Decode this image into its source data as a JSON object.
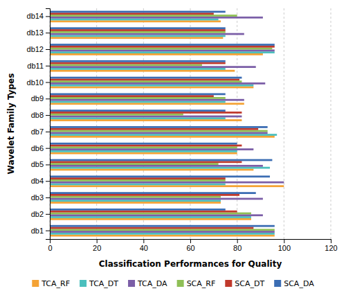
{
  "chart_data": {
    "type": "bar",
    "orientation": "horizontal",
    "xlabel": "Classification Performances for Quality",
    "ylabel": "Wavelet Family Types",
    "categories": [
      "db1",
      "db2",
      "db3",
      "db4",
      "db5",
      "db6",
      "db7",
      "db8",
      "db9",
      "db10",
      "db11",
      "db12",
      "db13",
      "db14"
    ],
    "series": [
      {
        "name": "TCA_RF",
        "color": "#F4A234",
        "values": [
          96,
          86,
          73,
          100,
          87,
          80,
          96,
          82,
          83,
          87,
          79,
          91,
          74,
          73
        ]
      },
      {
        "name": "TCA_DT",
        "color": "#4BBFBD",
        "values": [
          96,
          86,
          73,
          75,
          94,
          80,
          97,
          75,
          75,
          87,
          75,
          96,
          75,
          72
        ]
      },
      {
        "name": "TCA_DA",
        "color": "#7B5EA7",
        "values": [
          96,
          91,
          91,
          100,
          91,
          87,
          93,
          82,
          83,
          92,
          88,
          96,
          83,
          91
        ]
      },
      {
        "name": "SCA_RF",
        "color": "#8FBF56",
        "values": [
          96,
          86,
          73,
          75,
          72,
          80,
          93,
          57,
          75,
          82,
          65,
          95,
          75,
          80
        ]
      },
      {
        "name": "SCA_DT",
        "color": "#C0392B",
        "values": [
          87,
          80,
          81,
          75,
          82,
          82,
          89,
          82,
          70,
          81,
          75,
          96,
          75,
          70
        ]
      },
      {
        "name": "SCA_DA",
        "color": "#3B6DB3",
        "values": [
          96,
          75,
          88,
          94,
          95,
          80,
          93,
          75,
          75,
          82,
          75,
          96,
          75,
          75
        ]
      }
    ],
    "xlim": [
      0,
      120
    ],
    "xticks": [
      0,
      20,
      40,
      60,
      80,
      100,
      120
    ],
    "grid": true,
    "legend": "bottom"
  }
}
